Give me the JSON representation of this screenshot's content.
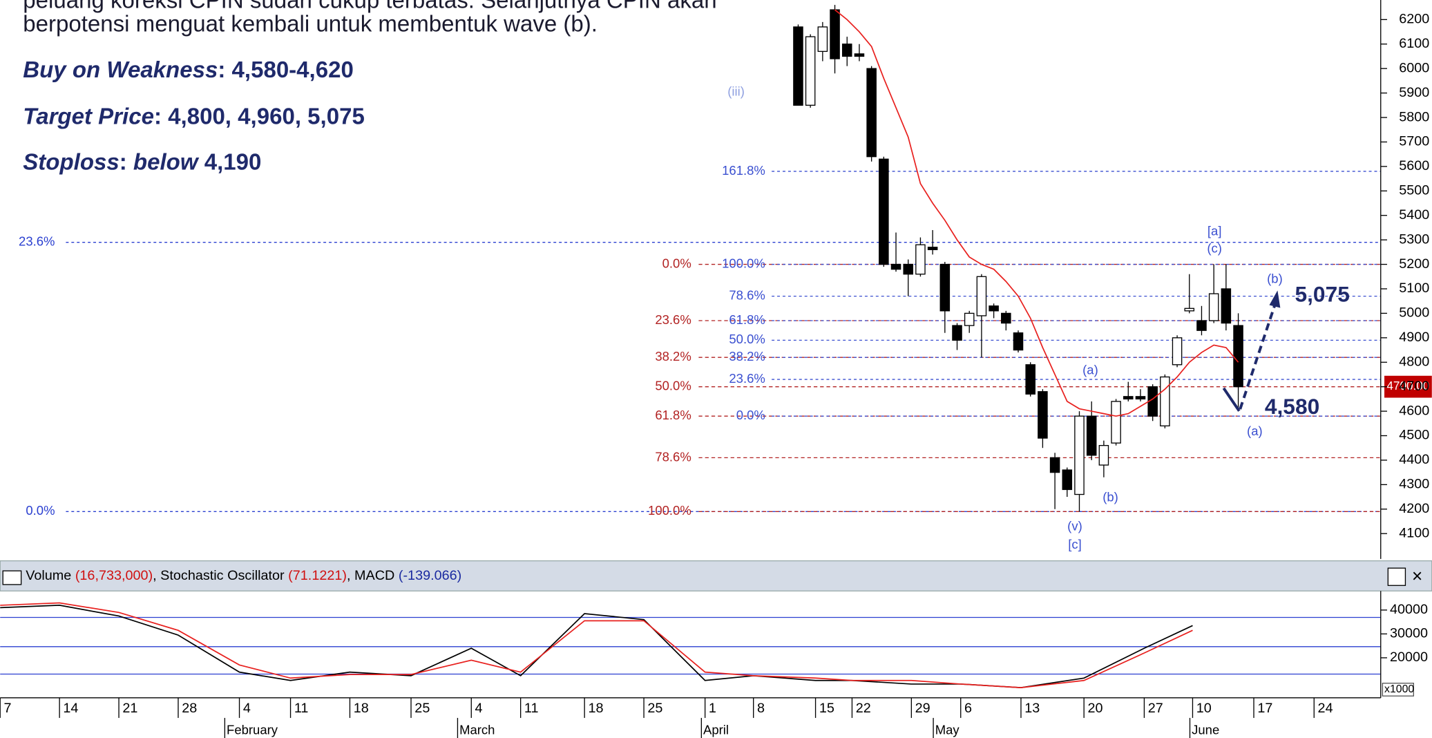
{
  "text": {
    "line1": "peluang koreksi CPIN sudah cukup terbatas. Selanjutnya CPIN akan",
    "line2": "berpotensi menguat kembali untuk membentuk wave (b).",
    "buy_label": "Buy on Weakness",
    "buy_value": ": 4,580-4,620",
    "target_label": "Target Price",
    "target_value": ": 4,800, 4,960, 5,075",
    "stop_label": "Stoploss",
    "stop_sep": ":",
    "stop_italic": "below",
    "stop_value": "4,190"
  },
  "chart_data": [
    {
      "type": "candlestick",
      "open": [
        6170,
        5850,
        6070,
        6240,
        6100,
        6060,
        6000,
        5630,
        5200,
        5200,
        5160,
        5270,
        5200,
        4950,
        4950,
        4990,
        5030,
        5000,
        4920,
        4790,
        4680,
        4410,
        4360,
        4260,
        4580,
        4380,
        4470,
        4660,
        4660,
        4700,
        4540,
        4790,
        5010,
        4970,
        4970,
        5100,
        4950
      ],
      "high": [
        6180,
        6140,
        6190,
        6260,
        6130,
        6100,
        6010,
        5640,
        5330,
        5220,
        5310,
        5340,
        5210,
        4960,
        5010,
        5160,
        5040,
        5010,
        4930,
        4800,
        4690,
        4430,
        4370,
        4600,
        4640,
        4480,
        4650,
        4720,
        4690,
        4710,
        4750,
        4910,
        5160,
        5030,
        5200,
        5200,
        5000
      ],
      "low": [
        5850,
        5840,
        6030,
        5980,
        6010,
        6030,
        5620,
        5190,
        5170,
        5070,
        5150,
        5240,
        4920,
        4850,
        4920,
        4820,
        4980,
        4930,
        4840,
        4660,
        4450,
        4200,
        4250,
        4190,
        4400,
        4330,
        4460,
        4640,
        4640,
        4560,
        4530,
        4780,
        5000,
        4910,
        4960,
        4930,
        4610
      ],
      "close": [
        5850,
        6130,
        6170,
        6040,
        6050,
        6050,
        5640,
        5200,
        5180,
        5160,
        5280,
        5260,
        5010,
        4890,
        5000,
        5150,
        5010,
        4960,
        4850,
        4670,
        4490,
        4350,
        4280,
        4580,
        4420,
        4460,
        4640,
        4650,
        4650,
        4580,
        4740,
        4900,
        5020,
        4930,
        5080,
        4960,
        4700
      ],
      "ma": [
        null,
        null,
        null,
        6240,
        6200,
        6150,
        6090,
        5960,
        5840,
        5720,
        5530,
        5450,
        5380,
        5300,
        5230,
        5200,
        5180,
        5130,
        5070,
        4980,
        4860,
        4750,
        4640,
        4610,
        4600,
        4590,
        4580,
        4590,
        4620,
        4650,
        4690,
        4740,
        4800,
        4840,
        4870,
        4860,
        4800
      ],
      "ma_color": "#e8201e",
      "up_color": "#ffffff",
      "down_color": "#000000",
      "ylim": [
        4000,
        6280
      ],
      "yticks": [
        4100,
        4200,
        4300,
        4400,
        4500,
        4600,
        4700,
        4800,
        4900,
        5000,
        5100,
        5200,
        5300,
        5400,
        5500,
        5600,
        5700,
        5800,
        5900,
        6000,
        6100,
        6200
      ],
      "last_price": {
        "value": 4700,
        "label": "4700.00"
      },
      "levels_right": [
        {
          "label": "161.8%",
          "value": 5580
        },
        {
          "label": "100.0%",
          "value": 5200
        },
        {
          "label": "78.6%",
          "value": 5070
        },
        {
          "label": "61.8%",
          "value": 4970
        },
        {
          "label": "50.0%",
          "value": 4890
        },
        {
          "label": "38.2%",
          "value": 4820
        },
        {
          "label": "23.6%",
          "value": 4730
        },
        {
          "label": "0.0%",
          "value": 4580
        }
      ],
      "levels_right_color": "#3a4fd0",
      "levels_red": [
        {
          "label": "0.0%",
          "value": 5200
        },
        {
          "label": "23.6%",
          "value": 4970
        },
        {
          "label": "38.2%",
          "value": 4820
        },
        {
          "label": "50.0%",
          "value": 4700
        },
        {
          "label": "61.8%",
          "value": 4580
        },
        {
          "label": "78.6%",
          "value": 4410
        },
        {
          "label": "100.0%",
          "value": 4190
        }
      ],
      "levels_red_color": "#b22222",
      "levels_left": [
        {
          "label": "23.6%",
          "value": 5290
        },
        {
          "label": "0.0%",
          "value": 4190
        }
      ],
      "levels_left_color": "#2a3fd0",
      "wave_labels": [
        "(iii)",
        "[a]",
        "(c)",
        "(a)",
        "(b)",
        "(v)",
        "[c]",
        "(b)",
        "(a)"
      ],
      "targets": [
        "5,075",
        "4,580"
      ]
    },
    {
      "type": "line",
      "title_parts": [
        {
          "text": "Volume ",
          "color": "#000000"
        },
        {
          "text": "(16,733,000)",
          "color": "#d01010"
        },
        {
          "text": ", Stochastic Oscillator ",
          "color": "#000000"
        },
        {
          "text": "(71.1221)",
          "color": "#d01010"
        },
        {
          "text": ", MACD ",
          "color": "#000000"
        },
        {
          "text": "(-139.066)",
          "color": "#1a2aa0"
        }
      ],
      "categories": [
        "7",
        "14",
        "21",
        "28",
        "4",
        "11",
        "18",
        "25",
        "4",
        "11",
        "18",
        "25",
        "1",
        "8",
        "15",
        "22",
        "29",
        "6",
        "13",
        "20",
        "27",
        "10",
        "17",
        "24"
      ],
      "months": [
        "February",
        "March",
        "April",
        "May",
        "June"
      ],
      "series": [
        {
          "color": "#000000",
          "values": [
            41000,
            42000,
            37500,
            29500,
            14000,
            10500,
            14000,
            12500,
            24000,
            12500,
            38500,
            36000,
            10500,
            12500,
            10500,
            10500,
            9000,
            9000,
            7500,
            11500,
            24000,
            33500,
            null,
            null
          ]
        },
        {
          "color": "#e8201e",
          "values": [
            42000,
            43000,
            39000,
            31500,
            17000,
            11500,
            13000,
            13000,
            19000,
            14000,
            35500,
            35500,
            14000,
            12500,
            11500,
            10500,
            10500,
            9000,
            7500,
            10500,
            22000,
            31500,
            null,
            null
          ]
        }
      ],
      "ylim": [
        4000,
        48000
      ],
      "yticks": [
        40000,
        30000,
        20000
      ],
      "unit_label": "x1000"
    }
  ]
}
